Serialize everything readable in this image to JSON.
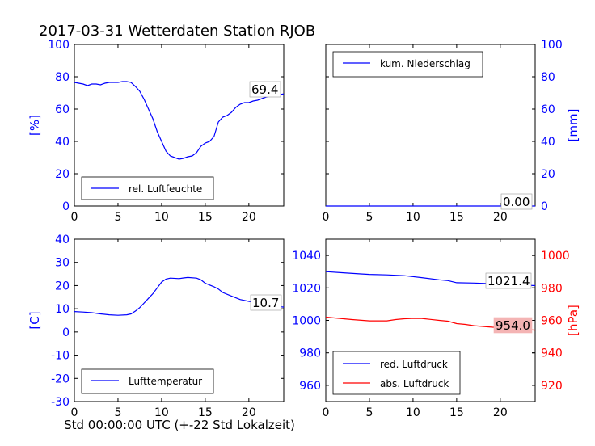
{
  "title": "2017-03-31 Wetterdaten Station RJOB",
  "xlabel": "Std 00:00:00 UTC (+-22 Std Lokalzeit)",
  "colors": {
    "blue": "#0000ff",
    "red": "#ff0000",
    "label_bg_red": "#f4b4b4"
  },
  "chart_data": [
    {
      "id": "humidity",
      "type": "line",
      "ylabel": "[%]",
      "ylabel_side": "left",
      "ylabel_color": "#0000ff",
      "xlim": [
        0,
        24
      ],
      "ylim": [
        0,
        100
      ],
      "xticks": [
        0,
        5,
        10,
        15,
        20
      ],
      "yticks": [
        0,
        20,
        40,
        60,
        80,
        100
      ],
      "legend_position": "lower-left",
      "value_label": "69.4",
      "series": [
        {
          "name": "rel. Luftfeuchte",
          "color": "#0000ff",
          "points": [
            [
              0,
              76.5
            ],
            [
              0.5,
              76
            ],
            [
              1,
              75.5
            ],
            [
              1.5,
              74.5
            ],
            [
              2,
              75.5
            ],
            [
              2.5,
              75.5
            ],
            [
              3,
              75
            ],
            [
              3.5,
              76
            ],
            [
              4,
              76.5
            ],
            [
              4.5,
              76.5
            ],
            [
              5,
              76.5
            ],
            [
              5.5,
              77
            ],
            [
              6,
              77
            ],
            [
              6.5,
              76.5
            ],
            [
              7,
              74
            ],
            [
              7.5,
              71
            ],
            [
              8,
              66
            ],
            [
              8.5,
              60
            ],
            [
              9,
              54
            ],
            [
              9.5,
              46
            ],
            [
              10,
              40
            ],
            [
              10.5,
              34
            ],
            [
              11,
              31
            ],
            [
              11.5,
              30
            ],
            [
              12,
              29
            ],
            [
              12.5,
              29.5
            ],
            [
              13,
              30.5
            ],
            [
              13.5,
              31
            ],
            [
              14,
              33
            ],
            [
              14.5,
              37
            ],
            [
              15,
              39
            ],
            [
              15.5,
              40
            ],
            [
              16,
              43
            ],
            [
              16.5,
              52
            ],
            [
              17,
              55
            ],
            [
              17.5,
              56
            ],
            [
              18,
              58
            ],
            [
              18.5,
              61
            ],
            [
              19,
              63
            ],
            [
              19.5,
              64
            ],
            [
              20,
              64
            ],
            [
              20.5,
              65
            ],
            [
              21,
              65.5
            ],
            [
              21.5,
              66.5
            ],
            [
              22,
              67.5
            ],
            [
              22.5,
              68
            ],
            [
              23,
              68.5
            ],
            [
              23.5,
              69
            ],
            [
              24,
              69.4
            ]
          ]
        }
      ]
    },
    {
      "id": "precipitation",
      "type": "line",
      "ylabel": "[mm]",
      "ylabel_side": "right",
      "ylabel_color": "#0000ff",
      "xlim": [
        0,
        24
      ],
      "ylim": [
        0,
        100
      ],
      "xticks": [
        0,
        5,
        10,
        15,
        20
      ],
      "yticks": [
        0,
        20,
        40,
        60,
        80,
        100
      ],
      "legend_position": "upper-left",
      "value_label": "0.00",
      "series": [
        {
          "name": "kum. Niederschlag",
          "color": "#0000ff",
          "points": [
            [
              0,
              0
            ],
            [
              24,
              0
            ]
          ]
        }
      ]
    },
    {
      "id": "temperature",
      "type": "line",
      "ylabel": "[C]",
      "ylabel_side": "left",
      "ylabel_color": "#0000ff",
      "xlim": [
        0,
        24
      ],
      "ylim": [
        -30,
        40
      ],
      "xticks": [
        0,
        5,
        10,
        15,
        20
      ],
      "yticks": [
        -30,
        -20,
        -10,
        0,
        10,
        20,
        30,
        40
      ],
      "legend_position": "lower-left",
      "value_label": "10.7",
      "series": [
        {
          "name": "Lufttemperatur",
          "color": "#0000ff",
          "points": [
            [
              0,
              8.8
            ],
            [
              1,
              8.6
            ],
            [
              2,
              8.3
            ],
            [
              3,
              7.8
            ],
            [
              4,
              7.4
            ],
            [
              5,
              7.2
            ],
            [
              6,
              7.4
            ],
            [
              6.5,
              7.8
            ],
            [
              7,
              9
            ],
            [
              7.5,
              10.5
            ],
            [
              8,
              12.5
            ],
            [
              8.5,
              14.5
            ],
            [
              9,
              16.5
            ],
            [
              9.5,
              19
            ],
            [
              10,
              21.5
            ],
            [
              10.5,
              22.8
            ],
            [
              11,
              23.2
            ],
            [
              12,
              23
            ],
            [
              12.5,
              23.3
            ],
            [
              13,
              23.5
            ],
            [
              14,
              23.2
            ],
            [
              14.5,
              22.5
            ],
            [
              15,
              21
            ],
            [
              16,
              19.5
            ],
            [
              16.5,
              18.5
            ],
            [
              17,
              17
            ],
            [
              18,
              15.5
            ],
            [
              19,
              14
            ],
            [
              20,
              13.2
            ],
            [
              21,
              12.5
            ],
            [
              22,
              12
            ],
            [
              23,
              11.2
            ],
            [
              24,
              10.7
            ]
          ]
        }
      ]
    },
    {
      "id": "pressure",
      "type": "line",
      "ylabel": "[hPa]",
      "ylabel_side": "right",
      "ylabel_color": "#ff0000",
      "xlim": [
        0,
        24
      ],
      "ylim": [
        950,
        1050
      ],
      "xticks": [
        0,
        5,
        10,
        15,
        20
      ],
      "yticks": [
        960,
        980,
        1000,
        1020,
        1040
      ],
      "ylim_right": [
        910,
        1010
      ],
      "yticks_right": [
        920,
        940,
        960,
        980,
        1000
      ],
      "legend_position": "lower-left",
      "value_labels": [
        "1021.4",
        "954.0"
      ],
      "series": [
        {
          "name": "red. Luftdruck",
          "color": "#0000ff",
          "axis": "left",
          "points": [
            [
              0,
              1030
            ],
            [
              2,
              1029.3
            ],
            [
              4,
              1028.6
            ],
            [
              5,
              1028.3
            ],
            [
              7,
              1028
            ],
            [
              9,
              1027.5
            ],
            [
              11,
              1026.3
            ],
            [
              13,
              1025
            ],
            [
              14,
              1024.5
            ],
            [
              15,
              1023.2
            ],
            [
              17,
              1023
            ],
            [
              19,
              1022.6
            ],
            [
              21,
              1022.2
            ],
            [
              24,
              1021.4
            ]
          ]
        },
        {
          "name": "abs. Luftdruck",
          "color": "#ff0000",
          "axis": "right",
          "points": [
            [
              0,
              962
            ],
            [
              2,
              961
            ],
            [
              3,
              960.5
            ],
            [
              5,
              959.7
            ],
            [
              7,
              959.7
            ],
            [
              8,
              960.5
            ],
            [
              9,
              961
            ],
            [
              10,
              961.2
            ],
            [
              11,
              961.2
            ],
            [
              12,
              960.6
            ],
            [
              13,
              960
            ],
            [
              14,
              959.5
            ],
            [
              15,
              958
            ],
            [
              16,
              957.5
            ],
            [
              17,
              956.7
            ],
            [
              19,
              955.8
            ],
            [
              21,
              955.2
            ],
            [
              24,
              954
            ]
          ]
        }
      ]
    }
  ]
}
